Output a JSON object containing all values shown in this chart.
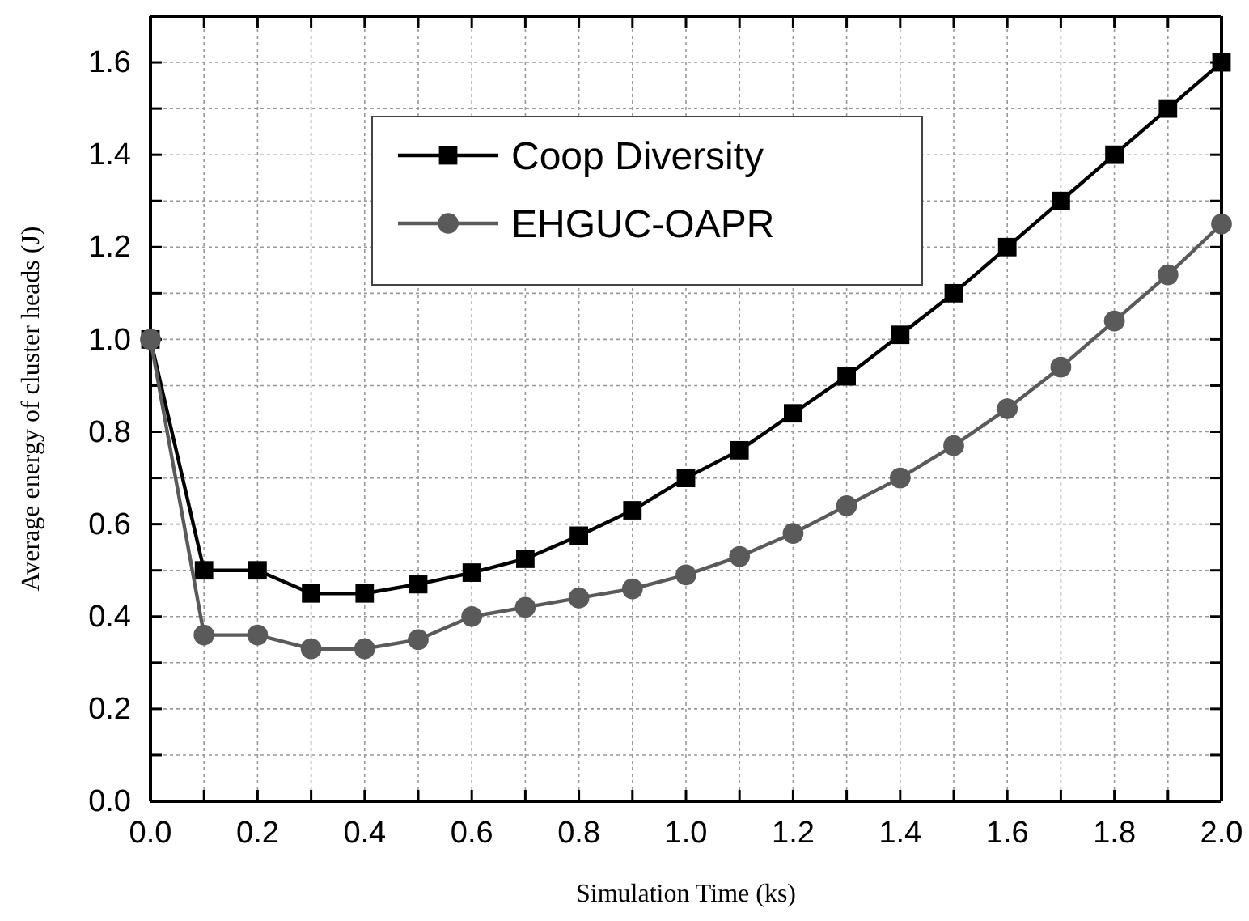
{
  "chart_data": {
    "type": "line",
    "xlabel": "Simulation Time (ks)",
    "ylabel": "Average energy of cluster heads (J)",
    "x": [
      0,
      0.1,
      0.2,
      0.3,
      0.4,
      0.5,
      0.6,
      0.7,
      0.8,
      0.9,
      1.0,
      1.1,
      1.2,
      1.3,
      1.4,
      1.5,
      1.6,
      1.7,
      1.8,
      1.9,
      2.0
    ],
    "series": [
      {
        "name": "Coop Diversity",
        "color": "#000000",
        "marker": "square",
        "values": [
          1.0,
          0.5,
          0.5,
          0.45,
          0.45,
          0.47,
          0.495,
          0.525,
          0.575,
          0.63,
          0.7,
          0.76,
          0.84,
          0.92,
          1.01,
          1.1,
          1.2,
          1.3,
          1.4,
          1.5,
          1.6
        ]
      },
      {
        "name": "EHGUC-OAPR",
        "color": "#5a5a5a",
        "marker": "circle",
        "values": [
          1.0,
          0.36,
          0.36,
          0.33,
          0.33,
          0.35,
          0.4,
          0.42,
          0.44,
          0.46,
          0.49,
          0.53,
          0.58,
          0.64,
          0.7,
          0.77,
          0.85,
          0.94,
          1.04,
          1.14,
          1.25
        ]
      }
    ],
    "xlim": [
      0,
      2.0
    ],
    "xticks": [
      {
        "value": 0,
        "label": "0.0"
      },
      {
        "value": 0.1,
        "label": null
      },
      0.2,
      {
        "value": 0.3,
        "label": null
      },
      0.4,
      {
        "value": 0.5,
        "label": null
      },
      0.6,
      {
        "value": 0.7,
        "label": null
      },
      0.8,
      {
        "value": 0.9,
        "label": null
      },
      {
        "value": 1,
        "label": "1.0"
      },
      {
        "value": 1.1,
        "label": null
      },
      1.2,
      {
        "value": 1.3,
        "label": null
      },
      1.4,
      {
        "value": 1.5,
        "label": null
      },
      1.6,
      {
        "value": 1.7,
        "label": null
      },
      1.8,
      {
        "value": 1.9,
        "label": null
      },
      {
        "value": 2,
        "label": "2.0"
      }
    ],
    "ylim": [
      0,
      1.7
    ],
    "yticks": [
      {
        "value": 0,
        "label": "0.0"
      },
      {
        "value": 0.1,
        "label": null
      },
      0.2,
      {
        "value": 0.3,
        "label": null
      },
      0.4,
      {
        "value": 0.5,
        "label": null
      },
      0.6,
      {
        "value": 0.7,
        "label": null
      },
      0.8,
      {
        "value": 0.9,
        "label": null
      },
      {
        "value": 1,
        "label": "1.0"
      },
      {
        "value": 1.1,
        "label": null
      },
      1.2,
      {
        "value": 1.3,
        "label": null
      },
      1.4,
      {
        "value": 1.5,
        "label": null
      },
      1.6
    ],
    "grid": true,
    "legend": "top left",
    "line_style": "solid"
  }
}
